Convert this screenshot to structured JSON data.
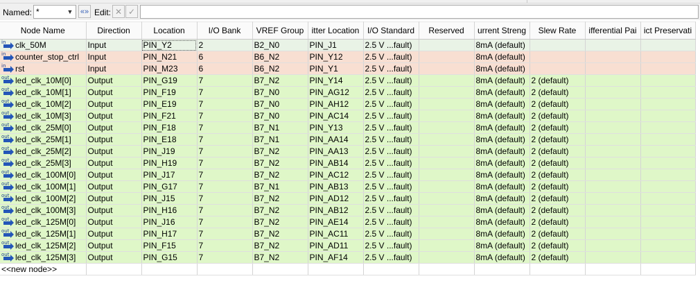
{
  "toolbar": {
    "named_label": "Named:",
    "named_value": "*",
    "edit_label": "Edit:",
    "edit_value": ""
  },
  "columns": [
    "Node Name",
    "Direction",
    "Location",
    "I/O Bank",
    "VREF Group",
    "Fitter Location",
    "I/O Standard",
    "Reserved",
    "Current Strength",
    "Slew Rate",
    "Differential Pair",
    "Strict Preservation"
  ],
  "columns_visible": [
    "Node Name",
    "Direction",
    "Location",
    "I/O Bank",
    "VREF Group",
    "itter Location",
    "I/O Standard",
    "Reserved",
    "urrent Streng",
    "Slew Rate",
    "ifferential Pai",
    "ict Preservati"
  ],
  "rows": [
    {
      "name": "clk_50M",
      "direction": "Input",
      "location": "PIN_Y2",
      "bank": "2",
      "vref": "B2_N0",
      "fitter": "PIN_J1",
      "standard": "2.5 V ...fault)",
      "reserved": "",
      "current": "8mA (default)",
      "slew": "",
      "diff": "",
      "strict": ""
    },
    {
      "name": "counter_stop_ctrl",
      "direction": "Input",
      "location": "PIN_N21",
      "bank": "6",
      "vref": "B6_N2",
      "fitter": "PIN_Y12",
      "standard": "2.5 V ...fault)",
      "reserved": "",
      "current": "8mA (default)",
      "slew": "",
      "diff": "",
      "strict": ""
    },
    {
      "name": "rst",
      "direction": "Input",
      "location": "PIN_M23",
      "bank": "6",
      "vref": "B6_N2",
      "fitter": "PIN_Y1",
      "standard": "2.5 V ...fault)",
      "reserved": "",
      "current": "8mA (default)",
      "slew": "",
      "diff": "",
      "strict": ""
    },
    {
      "name": "led_clk_10M[0]",
      "direction": "Output",
      "location": "PIN_G19",
      "bank": "7",
      "vref": "B7_N2",
      "fitter": "PIN_Y14",
      "standard": "2.5 V ...fault)",
      "reserved": "",
      "current": "8mA (default)",
      "slew": "2 (default)",
      "diff": "",
      "strict": ""
    },
    {
      "name": "led_clk_10M[1]",
      "direction": "Output",
      "location": "PIN_F19",
      "bank": "7",
      "vref": "B7_N0",
      "fitter": "PIN_AG12",
      "standard": "2.5 V ...fault)",
      "reserved": "",
      "current": "8mA (default)",
      "slew": "2 (default)",
      "diff": "",
      "strict": ""
    },
    {
      "name": "led_clk_10M[2]",
      "direction": "Output",
      "location": "PIN_E19",
      "bank": "7",
      "vref": "B7_N0",
      "fitter": "PIN_AH12",
      "standard": "2.5 V ...fault)",
      "reserved": "",
      "current": "8mA (default)",
      "slew": "2 (default)",
      "diff": "",
      "strict": ""
    },
    {
      "name": "led_clk_10M[3]",
      "direction": "Output",
      "location": "PIN_F21",
      "bank": "7",
      "vref": "B7_N0",
      "fitter": "PIN_AC14",
      "standard": "2.5 V ...fault)",
      "reserved": "",
      "current": "8mA (default)",
      "slew": "2 (default)",
      "diff": "",
      "strict": ""
    },
    {
      "name": "led_clk_25M[0]",
      "direction": "Output",
      "location": "PIN_F18",
      "bank": "7",
      "vref": "B7_N1",
      "fitter": "PIN_Y13",
      "standard": "2.5 V ...fault)",
      "reserved": "",
      "current": "8mA (default)",
      "slew": "2 (default)",
      "diff": "",
      "strict": ""
    },
    {
      "name": "led_clk_25M[1]",
      "direction": "Output",
      "location": "PIN_E18",
      "bank": "7",
      "vref": "B7_N1",
      "fitter": "PIN_AA14",
      "standard": "2.5 V ...fault)",
      "reserved": "",
      "current": "8mA (default)",
      "slew": "2 (default)",
      "diff": "",
      "strict": ""
    },
    {
      "name": "led_clk_25M[2]",
      "direction": "Output",
      "location": "PIN_J19",
      "bank": "7",
      "vref": "B7_N2",
      "fitter": "PIN_AA13",
      "standard": "2.5 V ...fault)",
      "reserved": "",
      "current": "8mA (default)",
      "slew": "2 (default)",
      "diff": "",
      "strict": ""
    },
    {
      "name": "led_clk_25M[3]",
      "direction": "Output",
      "location": "PIN_H19",
      "bank": "7",
      "vref": "B7_N2",
      "fitter": "PIN_AB14",
      "standard": "2.5 V ...fault)",
      "reserved": "",
      "current": "8mA (default)",
      "slew": "2 (default)",
      "diff": "",
      "strict": ""
    },
    {
      "name": "led_clk_100M[0]",
      "direction": "Output",
      "location": "PIN_J17",
      "bank": "7",
      "vref": "B7_N2",
      "fitter": "PIN_AC12",
      "standard": "2.5 V ...fault)",
      "reserved": "",
      "current": "8mA (default)",
      "slew": "2 (default)",
      "diff": "",
      "strict": ""
    },
    {
      "name": "led_clk_100M[1]",
      "direction": "Output",
      "location": "PIN_G17",
      "bank": "7",
      "vref": "B7_N1",
      "fitter": "PIN_AB13",
      "standard": "2.5 V ...fault)",
      "reserved": "",
      "current": "8mA (default)",
      "slew": "2 (default)",
      "diff": "",
      "strict": ""
    },
    {
      "name": "led_clk_100M[2]",
      "direction": "Output",
      "location": "PIN_J15",
      "bank": "7",
      "vref": "B7_N2",
      "fitter": "PIN_AD12",
      "standard": "2.5 V ...fault)",
      "reserved": "",
      "current": "8mA (default)",
      "slew": "2 (default)",
      "diff": "",
      "strict": ""
    },
    {
      "name": "led_clk_100M[3]",
      "direction": "Output",
      "location": "PIN_H16",
      "bank": "7",
      "vref": "B7_N2",
      "fitter": "PIN_AB12",
      "standard": "2.5 V ...fault)",
      "reserved": "",
      "current": "8mA (default)",
      "slew": "2 (default)",
      "diff": "",
      "strict": ""
    },
    {
      "name": "led_clk_125M[0]",
      "direction": "Output",
      "location": "PIN_J16",
      "bank": "7",
      "vref": "B7_N2",
      "fitter": "PIN_AE14",
      "standard": "2.5 V ...fault)",
      "reserved": "",
      "current": "8mA (default)",
      "slew": "2 (default)",
      "diff": "",
      "strict": ""
    },
    {
      "name": "led_clk_125M[1]",
      "direction": "Output",
      "location": "PIN_H17",
      "bank": "7",
      "vref": "B7_N2",
      "fitter": "PIN_AC11",
      "standard": "2.5 V ...fault)",
      "reserved": "",
      "current": "8mA (default)",
      "slew": "2 (default)",
      "diff": "",
      "strict": ""
    },
    {
      "name": "led_clk_125M[2]",
      "direction": "Output",
      "location": "PIN_F15",
      "bank": "7",
      "vref": "B7_N2",
      "fitter": "PIN_AD11",
      "standard": "2.5 V ...fault)",
      "reserved": "",
      "current": "8mA (default)",
      "slew": "2 (default)",
      "diff": "",
      "strict": ""
    },
    {
      "name": "led_clk_125M[3]",
      "direction": "Output",
      "location": "PIN_G15",
      "bank": "7",
      "vref": "B7_N2",
      "fitter": "PIN_AF14",
      "standard": "2.5 V ...fault)",
      "reserved": "",
      "current": "8mA (default)",
      "slew": "2 (default)",
      "diff": "",
      "strict": ""
    }
  ],
  "new_node_label": "<<new node>>",
  "icons": {
    "input": "input-pin-icon",
    "output": "output-pin-icon",
    "named_dropdown": "chevron-down-icon",
    "named_apply": "double-chevron-icon",
    "edit_cancel": "close-icon",
    "edit_accept": "checkmark-icon"
  },
  "colors": {
    "input_row": "#f8dfd2",
    "first_input_row": "#e9f3e6",
    "output_row": "#dff7c8",
    "pin_icon": "#2456b8"
  }
}
